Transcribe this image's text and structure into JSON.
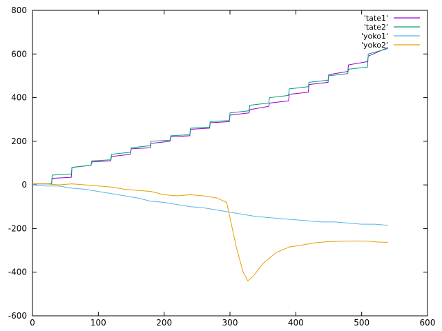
{
  "chart_data": {
    "type": "line",
    "xlim": [
      0,
      600
    ],
    "ylim": [
      -600,
      800
    ],
    "x_ticks": [
      0,
      100,
      200,
      300,
      400,
      500,
      600
    ],
    "y_ticks": [
      -600,
      -400,
      -200,
      0,
      200,
      400,
      600,
      800
    ],
    "x_tick_labels": [
      "0",
      "100",
      "200",
      "300",
      "400",
      "500",
      "600"
    ],
    "y_tick_labels": [
      "-600",
      "-400",
      "-200",
      "0",
      "200",
      "400",
      "600",
      "800"
    ],
    "grid": false,
    "legend": "top-right",
    "series": [
      {
        "name": "'tate1'",
        "color": "#9400d3",
        "points": [
          [
            0,
            5
          ],
          [
            29,
            5
          ],
          [
            30,
            30
          ],
          [
            59,
            35
          ],
          [
            60,
            80
          ],
          [
            89,
            90
          ],
          [
            90,
            105
          ],
          [
            119,
            110
          ],
          [
            120,
            130
          ],
          [
            149,
            140
          ],
          [
            150,
            165
          ],
          [
            179,
            170
          ],
          [
            180,
            190
          ],
          [
            209,
            200
          ],
          [
            210,
            220
          ],
          [
            239,
            225
          ],
          [
            240,
            255
          ],
          [
            269,
            260
          ],
          [
            270,
            285
          ],
          [
            299,
            290
          ],
          [
            300,
            320
          ],
          [
            329,
            330
          ],
          [
            330,
            345
          ],
          [
            359,
            360
          ],
          [
            360,
            375
          ],
          [
            389,
            385
          ],
          [
            390,
            415
          ],
          [
            419,
            425
          ],
          [
            420,
            460
          ],
          [
            449,
            470
          ],
          [
            450,
            505
          ],
          [
            479,
            520
          ],
          [
            480,
            550
          ],
          [
            509,
            565
          ],
          [
            510,
            590
          ],
          [
            540,
            630
          ]
        ]
      },
      {
        "name": "'tate2'",
        "color": "#009e73",
        "points": [
          [
            0,
            5
          ],
          [
            29,
            5
          ],
          [
            30,
            45
          ],
          [
            59,
            50
          ],
          [
            60,
            80
          ],
          [
            89,
            90
          ],
          [
            90,
            110
          ],
          [
            119,
            115
          ],
          [
            120,
            140
          ],
          [
            149,
            150
          ],
          [
            150,
            170
          ],
          [
            179,
            180
          ],
          [
            180,
            200
          ],
          [
            209,
            205
          ],
          [
            210,
            225
          ],
          [
            239,
            230
          ],
          [
            240,
            260
          ],
          [
            269,
            265
          ],
          [
            270,
            290
          ],
          [
            299,
            295
          ],
          [
            300,
            330
          ],
          [
            329,
            340
          ],
          [
            330,
            365
          ],
          [
            359,
            375
          ],
          [
            360,
            400
          ],
          [
            389,
            410
          ],
          [
            390,
            440
          ],
          [
            419,
            450
          ],
          [
            420,
            470
          ],
          [
            449,
            480
          ],
          [
            450,
            500
          ],
          [
            479,
            510
          ],
          [
            480,
            530
          ],
          [
            509,
            540
          ],
          [
            510,
            600
          ],
          [
            540,
            625
          ]
        ]
      },
      {
        "name": "'yoko1'",
        "color": "#56b4e9",
        "points": [
          [
            0,
            0
          ],
          [
            20,
            -5
          ],
          [
            40,
            -5
          ],
          [
            60,
            -15
          ],
          [
            80,
            -20
          ],
          [
            100,
            -30
          ],
          [
            120,
            -40
          ],
          [
            140,
            -50
          ],
          [
            160,
            -60
          ],
          [
            180,
            -75
          ],
          [
            200,
            -80
          ],
          [
            220,
            -90
          ],
          [
            240,
            -100
          ],
          [
            260,
            -105
          ],
          [
            280,
            -115
          ],
          [
            300,
            -125
          ],
          [
            320,
            -135
          ],
          [
            340,
            -145
          ],
          [
            360,
            -150
          ],
          [
            380,
            -155
          ],
          [
            400,
            -160
          ],
          [
            420,
            -165
          ],
          [
            440,
            -170
          ],
          [
            460,
            -170
          ],
          [
            480,
            -175
          ],
          [
            500,
            -180
          ],
          [
            520,
            -180
          ],
          [
            540,
            -185
          ]
        ]
      },
      {
        "name": "'yoko2'",
        "color": "#e69f00",
        "points": [
          [
            0,
            5
          ],
          [
            20,
            5
          ],
          [
            40,
            0
          ],
          [
            60,
            5
          ],
          [
            80,
            0
          ],
          [
            100,
            -5
          ],
          [
            120,
            -10
          ],
          [
            140,
            -20
          ],
          [
            160,
            -25
          ],
          [
            180,
            -30
          ],
          [
            200,
            -45
          ],
          [
            220,
            -50
          ],
          [
            240,
            -45
          ],
          [
            260,
            -50
          ],
          [
            280,
            -60
          ],
          [
            295,
            -80
          ],
          [
            300,
            -150
          ],
          [
            310,
            -290
          ],
          [
            320,
            -400
          ],
          [
            327,
            -440
          ],
          [
            335,
            -420
          ],
          [
            350,
            -360
          ],
          [
            370,
            -310
          ],
          [
            390,
            -285
          ],
          [
            410,
            -275
          ],
          [
            430,
            -265
          ],
          [
            450,
            -260
          ],
          [
            470,
            -258
          ],
          [
            490,
            -257
          ],
          [
            510,
            -258
          ],
          [
            525,
            -262
          ],
          [
            540,
            -263
          ]
        ]
      }
    ]
  }
}
